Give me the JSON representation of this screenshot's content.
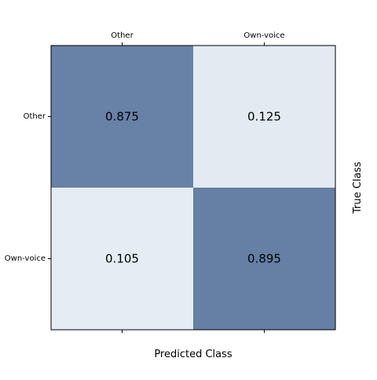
{
  "chart_data": {
    "type": "heatmap",
    "title": "",
    "xlabel": "Predicted Class",
    "ylabel": "True Class",
    "x_categories": [
      "Other",
      "Own-voice"
    ],
    "y_categories": [
      "Other",
      "Own-voice"
    ],
    "x_tick_position": "top",
    "y_label_position": "right",
    "values": [
      [
        0.875,
        0.125
      ],
      [
        0.105,
        0.895
      ]
    ],
    "cell_labels": [
      [
        "0.875",
        "0.125"
      ],
      [
        "0.105",
        "0.895"
      ]
    ],
    "value_range": [
      0,
      1
    ],
    "colors": {
      "high": "#54709a",
      "low": "#f7fbff",
      "frame": "#000000"
    },
    "grid": false,
    "legend": "none"
  }
}
